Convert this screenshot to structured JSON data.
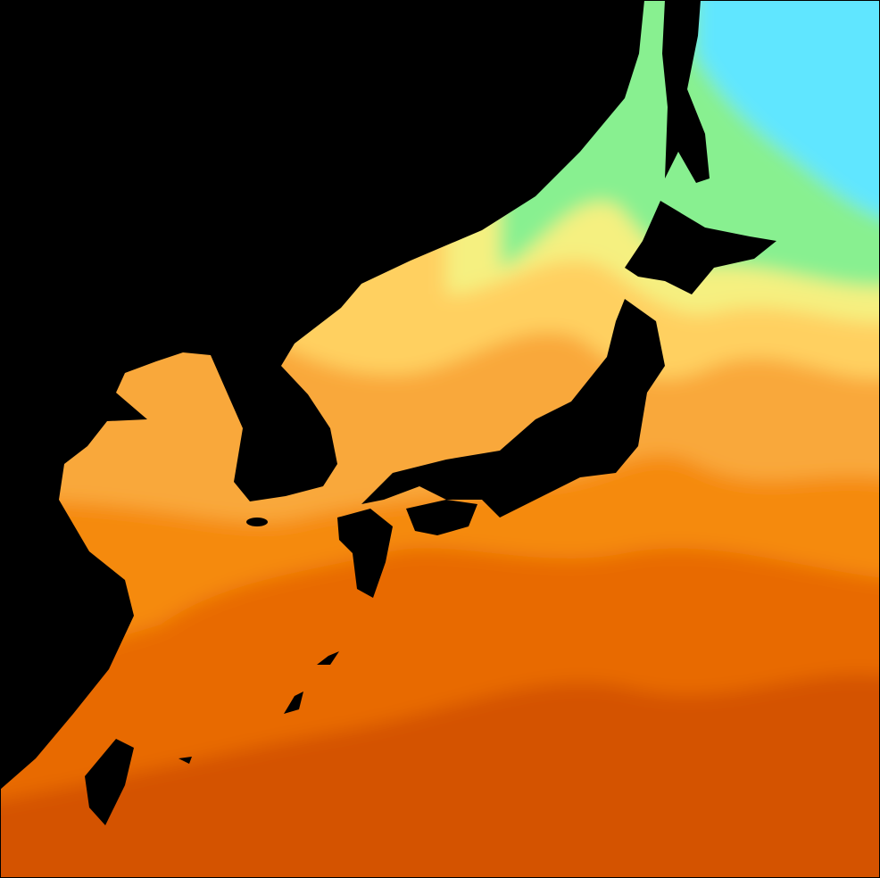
{
  "map": {
    "kind": "sea surface temperature",
    "palette": {
      "land": "#000000",
      "warmest": "#d45200",
      "warm": "#e86a00",
      "orange": "#f58a10",
      "light_orange": "#f9a83a",
      "yellow": "#ffd060",
      "pale_yellow": "#f5f080",
      "green": "#88f090",
      "cyan": "#60e6ff"
    }
  }
}
